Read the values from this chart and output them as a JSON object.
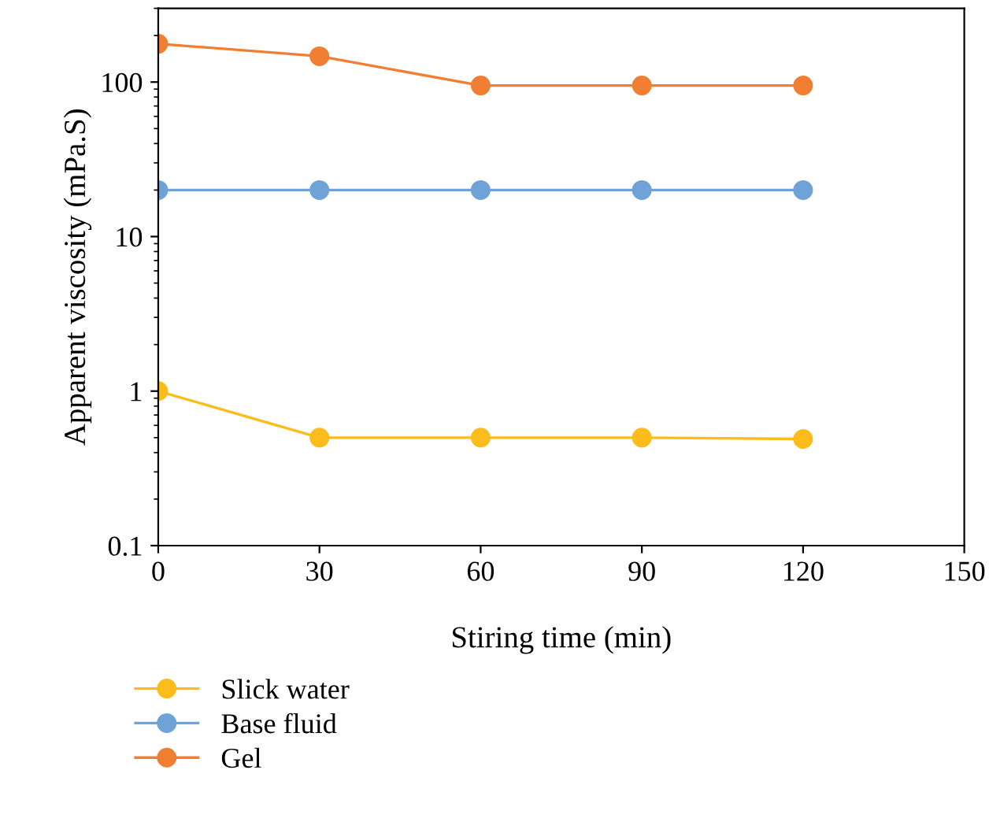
{
  "chart_data": {
    "type": "line",
    "xlabel": "Stiring time (min)",
    "ylabel": "Apparent viscosity (mPa.S)",
    "x": [
      0,
      30,
      60,
      90,
      120
    ],
    "series": [
      {
        "name": "Slick water",
        "color": "#fbbc1c",
        "values": [
          1,
          0.5,
          0.5,
          0.5,
          0.49
        ]
      },
      {
        "name": "Base fluid",
        "color": "#6fa2d6",
        "values": [
          20,
          20,
          20,
          20,
          20
        ]
      },
      {
        "name": "Gel",
        "color": "#f07f33",
        "values": [
          177,
          147,
          95,
          95,
          95
        ]
      }
    ],
    "log": "y",
    "xlim": [
      0,
      150
    ],
    "xticks": [
      0,
      30,
      60,
      90,
      120,
      150
    ],
    "ylim": [
      0.1,
      300
    ],
    "yticks": [
      0.1,
      1,
      10,
      100
    ],
    "marker": "circle",
    "line_style": "solid",
    "grid": false,
    "legend": "bottom left"
  }
}
